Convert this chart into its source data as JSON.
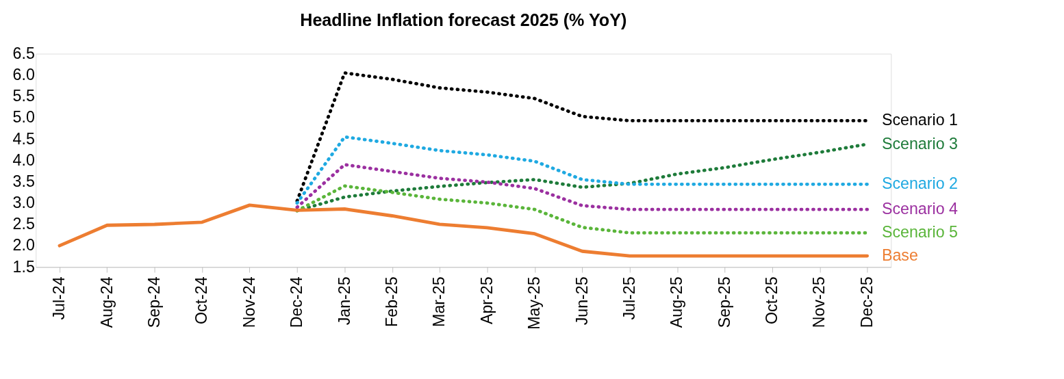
{
  "chart_data": {
    "type": "line",
    "title": "Headline Inflation forecast 2025 (% YoY)",
    "categories": [
      "Jul-24",
      "Aug-24",
      "Sep-24",
      "Oct-24",
      "Nov-24",
      "Dec-24",
      "Jan-25",
      "Feb-25",
      "Mar-25",
      "Apr-25",
      "May-25",
      "Jun-25",
      "Jul-25",
      "Aug-25",
      "Sep-25",
      "Oct-25",
      "Nov-25",
      "Dec-25"
    ],
    "series": [
      {
        "name": "Scenario 1",
        "color": "#000000",
        "line_style": "dotted",
        "values": [
          null,
          null,
          null,
          null,
          null,
          3.05,
          6.05,
          5.9,
          5.7,
          5.6,
          5.45,
          5.03,
          4.93,
          4.93,
          4.93,
          4.93,
          4.93,
          4.93
        ]
      },
      {
        "name": "Scenario 3",
        "color": "#1e7b3a",
        "line_style": "dotted",
        "values": [
          null,
          null,
          null,
          null,
          null,
          2.82,
          3.14,
          3.28,
          3.39,
          3.48,
          3.55,
          3.37,
          3.46,
          3.68,
          3.83,
          4.02,
          4.19,
          4.38
        ]
      },
      {
        "name": "Scenario 2",
        "color": "#1fa9e1",
        "line_style": "dotted",
        "values": [
          null,
          null,
          null,
          null,
          null,
          3.0,
          4.55,
          4.4,
          4.23,
          4.13,
          3.98,
          3.55,
          3.44,
          3.44,
          3.44,
          3.44,
          3.44,
          3.44
        ]
      },
      {
        "name": "Scenario 4",
        "color": "#9b30a0",
        "line_style": "dotted",
        "values": [
          null,
          null,
          null,
          null,
          null,
          2.9,
          3.9,
          3.74,
          3.58,
          3.49,
          3.34,
          2.94,
          2.85,
          2.85,
          2.85,
          2.85,
          2.85,
          2.85
        ]
      },
      {
        "name": "Scenario 5",
        "color": "#5ab53a",
        "line_style": "dotted",
        "values": [
          null,
          null,
          null,
          null,
          null,
          2.82,
          3.4,
          3.25,
          3.09,
          3.0,
          2.85,
          2.43,
          2.3,
          2.3,
          2.3,
          2.3,
          2.3,
          2.3
        ]
      },
      {
        "name": "Base",
        "color": "#ed7d31",
        "line_style": "solid",
        "values": [
          2.0,
          2.48,
          2.5,
          2.55,
          2.95,
          2.83,
          2.86,
          2.7,
          2.5,
          2.42,
          2.28,
          1.87,
          1.76,
          1.76,
          1.76,
          1.76,
          1.76,
          1.76
        ]
      }
    ],
    "ylim": [
      1.5,
      6.5
    ],
    "yticks": [
      1.5,
      {
        "value": 2,
        "label": "2.0"
      },
      2.5,
      {
        "value": 3,
        "label": "3.0"
      },
      3.5,
      {
        "value": 4,
        "label": "4.0"
      },
      4.5,
      {
        "value": 5,
        "label": "5.0"
      },
      5.5,
      {
        "value": 6,
        "label": "6.0"
      },
      6.5
    ],
    "grid": false
  }
}
